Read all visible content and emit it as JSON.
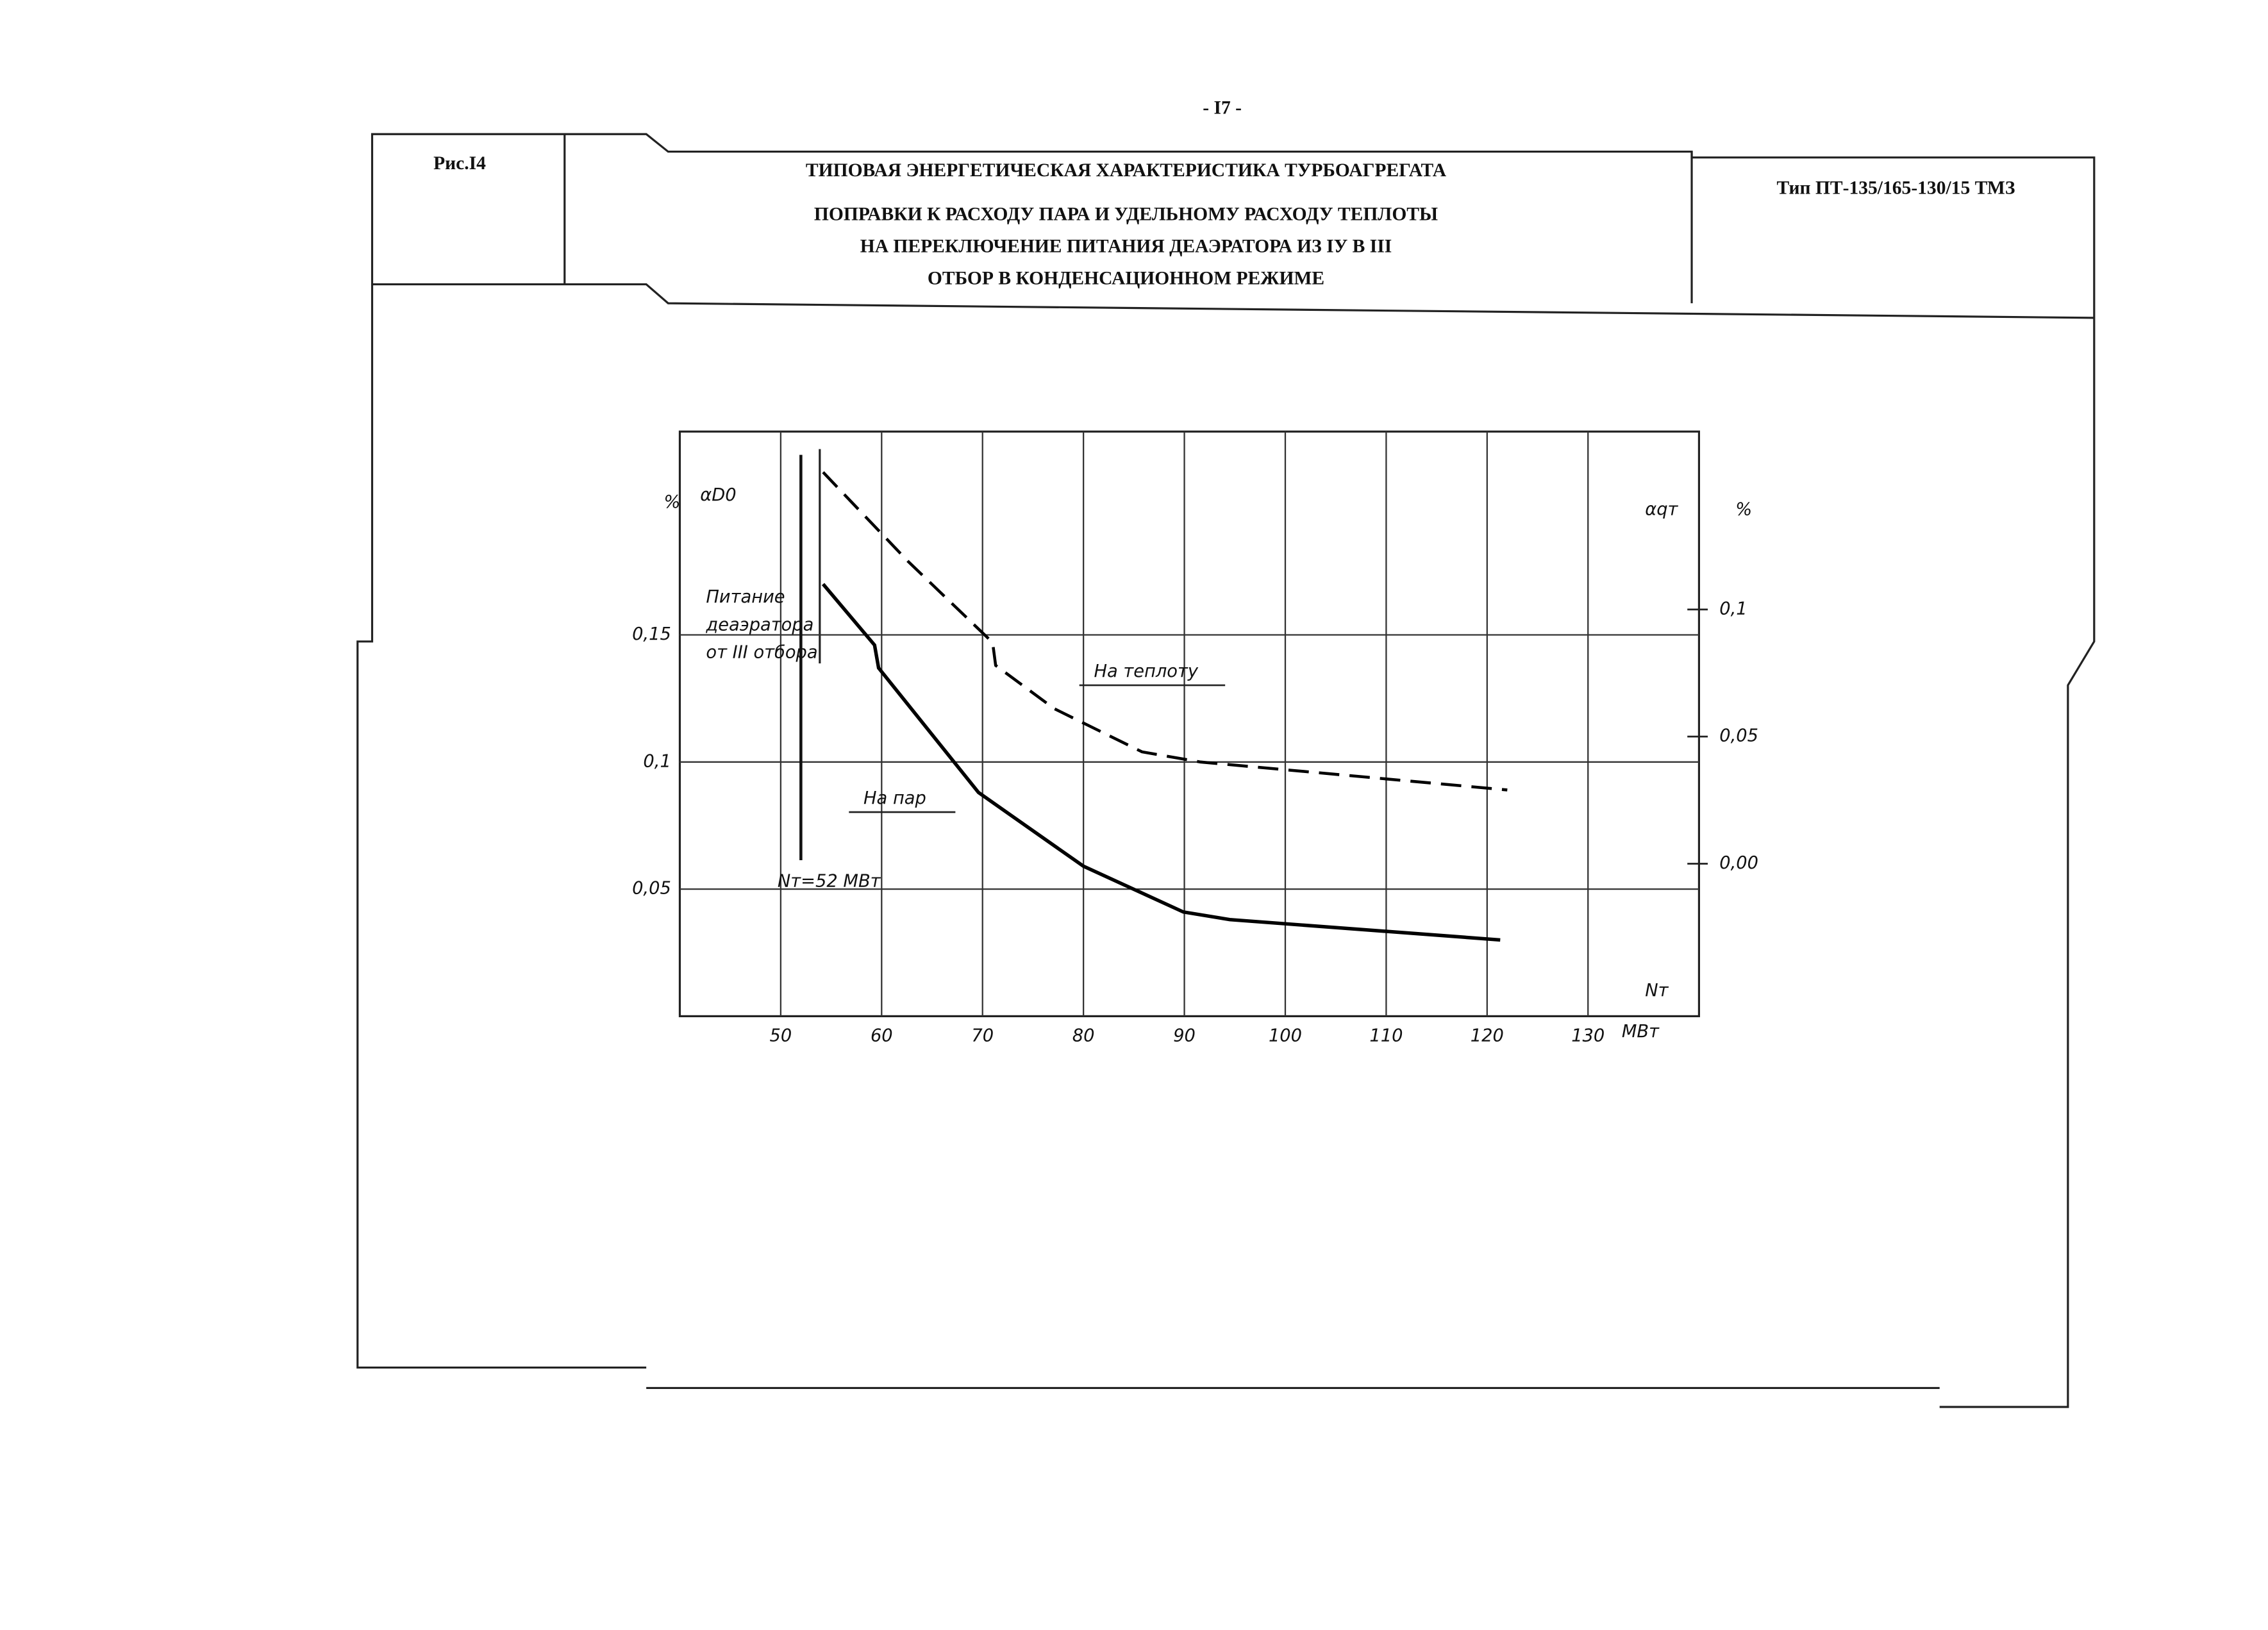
{
  "page_number": "- I7 -",
  "header": {
    "figure": "Рис.I4",
    "title": "ТИПОВАЯ ЭНЕРГЕТИЧЕСКАЯ ХАРАКТЕРИСТИКА ТУРБОАГРЕГАТА",
    "subtitle_lines": [
      "ПОПРАВКИ К РАСХОДУ ПАРА И УДЕЛЬНОМУ РАСХОДУ ТЕПЛОТЫ",
      "НА ПЕРЕКЛЮЧЕНИЕ ПИТАНИЯ ДЕАЭРАТОРА ИЗ IУ В III",
      "ОТБОР В КОНДЕНСАЦИОННОМ РЕЖИМЕ"
    ],
    "type": "Тип ПТ-135/165-130/15 ТМЗ"
  },
  "chart_data": {
    "type": "line",
    "x_label": "Nт",
    "x_unit": "МВт",
    "y_label": "αD0",
    "y_unit": "%",
    "y2_label": "αqт",
    "y2_unit": "%",
    "xlim": [
      40,
      141
    ],
    "xticks": [
      50,
      60,
      70,
      80,
      90,
      100,
      110,
      120,
      130
    ],
    "ylim": [
      0,
      0.23
    ],
    "yticks": [
      {
        "value": 0.05,
        "label": "0,05"
      },
      {
        "value": 0.1,
        "label": "0,1"
      },
      {
        "value": 0.15,
        "label": "0,15"
      }
    ],
    "y2lim": [
      -0.06,
      0.17
    ],
    "y2ticks": [
      {
        "value": 0,
        "label": "0,00"
      },
      {
        "value": 0.05,
        "label": "0,05"
      },
      {
        "value": 0.1,
        "label": "0,1"
      }
    ],
    "grid": true,
    "series": [
      {
        "name": "На пар",
        "color": "#000000",
        "style": "solid",
        "x": [
          54.2,
          59.3,
          59.7,
          69.6,
          80,
          89.9,
          94.5,
          121.3
        ],
        "values": [
          0.17,
          0.146,
          0.137,
          0.088,
          0.059,
          0.041,
          0.038,
          0.03
        ]
      },
      {
        "name": "На теплоту",
        "color": "#000000",
        "style": "dashed",
        "axis": "y2",
        "x": [
          54.2,
          62.6,
          71,
          71.3,
          77.1,
          85.8,
          91.6,
          122
        ],
        "values": [
          0.154,
          0.119,
          0.087,
          0.078,
          0.061,
          0.044,
          0.04,
          0.029
        ]
      }
    ],
    "marker_x": 52,
    "annotations": [
      "Питание",
      "деаэратора",
      "от III отбора",
      "Nт=52 МВт"
    ]
  }
}
